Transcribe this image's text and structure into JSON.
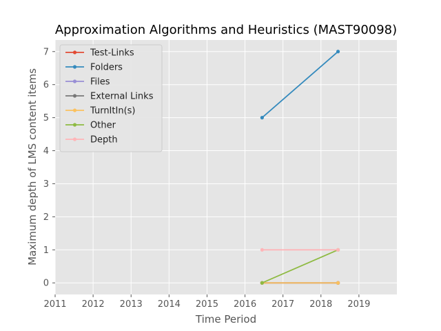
{
  "chart_data": {
    "type": "line",
    "title": "Approximation Algorithms and Heuristics (MAST90098)",
    "xlabel": "Time Period",
    "ylabel": "Maximum depth of LMS content items",
    "xlim": [
      2011,
      2020
    ],
    "ylim": [
      -0.35,
      7.35
    ],
    "x_ticks": [
      "2011",
      "2012",
      "2013",
      "2014",
      "2015",
      "2016",
      "2017",
      "2018",
      "2019"
    ],
    "y_ticks": [
      "0",
      "1",
      "2",
      "3",
      "4",
      "5",
      "6",
      "7"
    ],
    "grid": true,
    "legend_position": "top-left",
    "x": [
      2016.45,
      2018.45
    ],
    "series": [
      {
        "name": "Test-Links",
        "color": "#E24A33",
        "values": [
          0,
          0
        ]
      },
      {
        "name": "Folders",
        "color": "#348ABD",
        "values": [
          5,
          7
        ]
      },
      {
        "name": "Files",
        "color": "#988ED5",
        "values": [
          0,
          0
        ]
      },
      {
        "name": "External Links",
        "color": "#777777",
        "values": [
          0,
          0
        ]
      },
      {
        "name": "TurnItIn(s)",
        "color": "#FBC15E",
        "values": [
          0,
          0
        ]
      },
      {
        "name": "Other",
        "color": "#8EBA42",
        "values": [
          0,
          1
        ]
      },
      {
        "name": "Depth",
        "color": "#FFB5B8",
        "values": [
          1,
          1
        ]
      }
    ]
  }
}
